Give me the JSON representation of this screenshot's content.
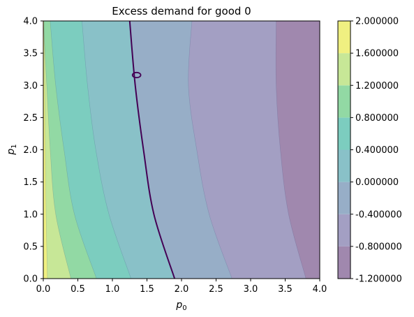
{
  "chart_data": {
    "type": "contour",
    "title": "Excess demand for good 0",
    "xlabel": "p",
    "xlabel_sub": "0",
    "ylabel": "p",
    "ylabel_sub": "1",
    "xlim": [
      0.0,
      4.0
    ],
    "ylim": [
      0.0,
      4.0
    ],
    "xticks": [
      "0.0",
      "0.5",
      "1.0",
      "1.5",
      "2.0",
      "2.5",
      "3.0",
      "3.5",
      "4.0"
    ],
    "yticks": [
      "0.0",
      "0.5",
      "1.0",
      "1.5",
      "2.0",
      "2.5",
      "3.0",
      "3.5",
      "4.0"
    ],
    "grid": false,
    "colormap": "viridis",
    "fill_alpha": 0.5,
    "colorbar": {
      "levels": [
        -1.2,
        -0.8,
        -0.4,
        0.0,
        0.4,
        0.8,
        1.2,
        1.6,
        2.0
      ],
      "labels": [
        "-1.200000",
        "-0.800000",
        "-0.400000",
        "0.000000",
        "0.400000",
        "0.800000",
        "1.200000",
        "1.600000",
        "2.000000"
      ],
      "band_colors": [
        "#a088ae",
        "#a39fc3",
        "#97aec7",
        "#89c1c8",
        "#7ccdbf",
        "#92d9a4",
        "#c7e797",
        "#f0f081"
      ]
    },
    "contour_boundaries": [
      {
        "level": 1.6,
        "points": [
          [
            0.06,
            0.0
          ],
          [
            0.04,
            1.0
          ],
          [
            0.03,
            2.0
          ],
          [
            0.02,
            3.0
          ],
          [
            0.01,
            4.0
          ]
        ]
      },
      {
        "level": 1.2,
        "points": [
          [
            0.4,
            0.0
          ],
          [
            0.18,
            1.0
          ],
          [
            0.1,
            2.0
          ],
          [
            0.05,
            3.0
          ],
          [
            0.0,
            4.0
          ]
        ]
      },
      {
        "level": 0.8,
        "points": [
          [
            0.77,
            0.0
          ],
          [
            0.45,
            1.0
          ],
          [
            0.3,
            2.0
          ],
          [
            0.18,
            3.0
          ],
          [
            0.1,
            4.0
          ]
        ]
      },
      {
        "level": 0.4,
        "points": [
          [
            1.27,
            0.0
          ],
          [
            0.95,
            1.0
          ],
          [
            0.76,
            2.0
          ],
          [
            0.64,
            3.0
          ],
          [
            0.56,
            4.0
          ]
        ]
      },
      {
        "level": -0.4,
        "points": [
          [
            2.73,
            0.0
          ],
          [
            2.4,
            1.0
          ],
          [
            2.22,
            2.0
          ],
          [
            2.1,
            3.0
          ],
          [
            2.15,
            4.0
          ]
        ]
      },
      {
        "level": -0.8,
        "points": [
          [
            3.8,
            0.0
          ],
          [
            3.55,
            1.0
          ],
          [
            3.43,
            2.0
          ],
          [
            3.37,
            3.0
          ],
          [
            3.37,
            4.0
          ]
        ]
      }
    ],
    "zero_contour": {
      "level": 0.0,
      "color": "#440154",
      "main": [
        [
          1.9,
          0.0
        ],
        [
          1.6,
          1.0
        ],
        [
          1.45,
          2.0
        ],
        [
          1.33,
          3.0
        ],
        [
          1.25,
          4.0
        ]
      ],
      "loop_center": [
        1.35,
        3.16
      ],
      "loop_radius": [
        0.06,
        0.04
      ]
    }
  }
}
